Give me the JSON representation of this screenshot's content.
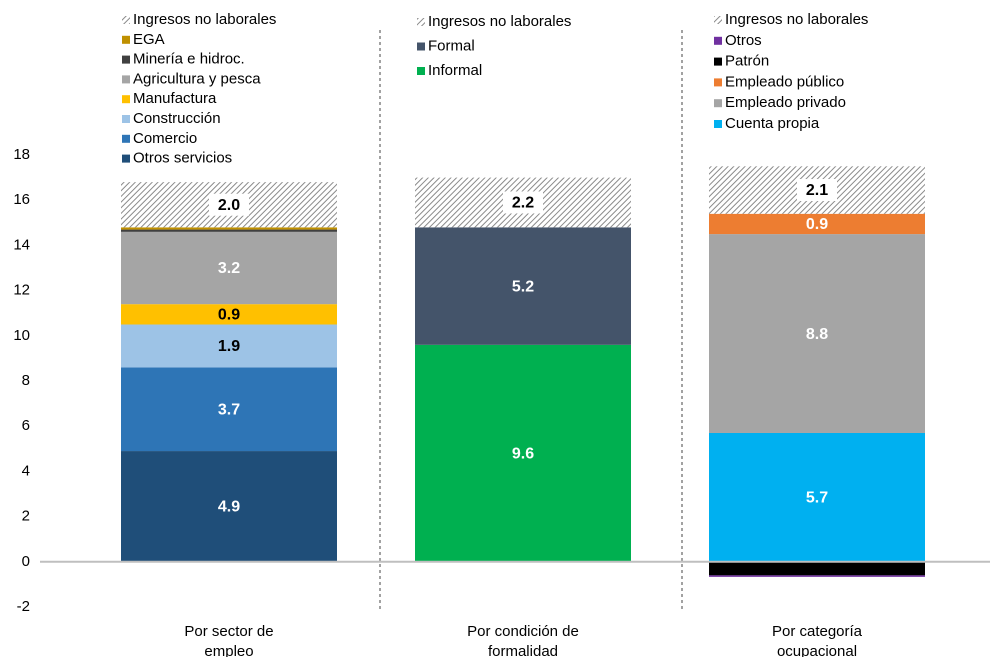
{
  "chart_data": {
    "type": "stacked-bar",
    "ylim": [
      -2,
      18
    ],
    "yticks": [
      -2,
      0,
      2,
      4,
      6,
      8,
      10,
      12,
      14,
      16,
      18
    ],
    "groups": [
      {
        "category": [
          "Por sector de",
          "empleo"
        ],
        "series": [
          {
            "name": "Otros servicios",
            "color": "#1f4e79",
            "value": 4.9,
            "label_color": "#ffffff"
          },
          {
            "name": "Comercio",
            "color": "#2e75b6",
            "value": 3.7,
            "label_color": "#ffffff"
          },
          {
            "name": "Construcción",
            "color": "#9dc3e6",
            "value": 1.9,
            "label_color": "#000000"
          },
          {
            "name": "Manufactura",
            "color": "#ffc000",
            "value": 0.9,
            "label_color": "#000000"
          },
          {
            "name": "Agricultura y pesca",
            "color": "#a5a5a5",
            "value": 3.2,
            "label_color": "#ffffff"
          },
          {
            "name": "Minería e hidroc.",
            "color": "#404040",
            "value": 0.1
          },
          {
            "name": "EGA",
            "color": "#bf9000",
            "value": 0.1
          },
          {
            "name": "Ingresos no laborales",
            "color": "#9a9a9a",
            "pattern": "hatch",
            "value": 2,
            "value_label": "2.0",
            "label_color": "#000000"
          }
        ]
      },
      {
        "category": [
          "Por condición de",
          "formalidad"
        ],
        "series": [
          {
            "name": "Informal",
            "color": "#00b050",
            "value": 9.6,
            "label_color": "#ffffff"
          },
          {
            "name": "Formal",
            "color": "#44546a",
            "value": 5.2,
            "label_color": "#ffffff"
          },
          {
            "name": "Ingresos no laborales",
            "color": "#9a9a9a",
            "pattern": "hatch",
            "value": 2.2,
            "label_color": "#000000"
          }
        ]
      },
      {
        "category": [
          "Por categoría",
          "ocupacional"
        ],
        "series": [
          {
            "name": "Cuenta propia",
            "color": "#00b0f0",
            "value": 5.7,
            "label_color": "#ffffff"
          },
          {
            "name": "Empleado privado",
            "color": "#a5a5a5",
            "value": 8.8,
            "label_color": "#ffffff"
          },
          {
            "name": "Empleado público",
            "color": "#ed7d31",
            "value": 0.9,
            "label_color": "#ffffff"
          },
          {
            "name": "Patrón",
            "color": "#000000",
            "value": -0.6
          },
          {
            "name": "Otros",
            "color": "#7030a0",
            "value": -0.05
          },
          {
            "name": "Ingresos no laborales",
            "color": "#9a9a9a",
            "pattern": "hatch",
            "value": 2.1,
            "label_color": "#000000"
          }
        ]
      }
    ]
  }
}
